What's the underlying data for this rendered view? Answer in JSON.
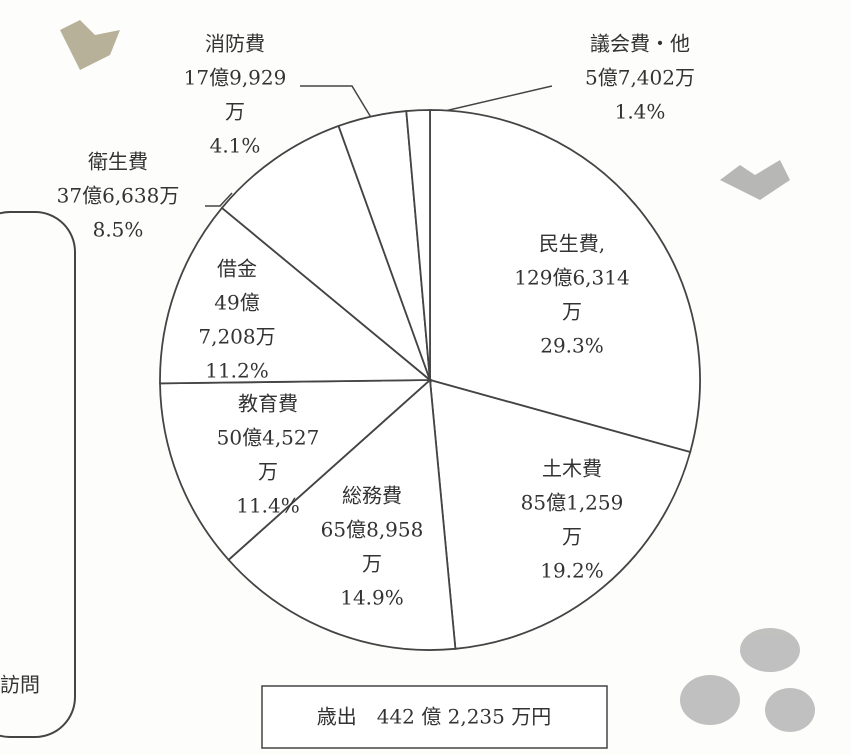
{
  "chart_data": {
    "type": "pie",
    "categories": [
      "民生費,",
      "土木費",
      "総務費",
      "教育費",
      "借金",
      "衛生費",
      "消防費",
      "議会費・他"
    ],
    "amounts": [
      [
        "129億6,314",
        "万"
      ],
      [
        "85億1,259",
        "万"
      ],
      [
        "65億8,958",
        "万"
      ],
      [
        "50億4,527",
        "万"
      ],
      [
        "49億",
        "7,208万"
      ],
      [
        "37億6,638万"
      ],
      [
        "17億9,929",
        "万"
      ],
      [
        "5億7,402万"
      ]
    ],
    "values": [
      29.3,
      19.2,
      14.9,
      11.4,
      11.2,
      8.5,
      4.1,
      1.4
    ],
    "value_labels": [
      "29.3%",
      "19.2%",
      "14.9%",
      "11.4%",
      "11.2%",
      "8.5%",
      "4.1%",
      "1.4%"
    ],
    "color": "#ffffff",
    "total_label": "歳出　442 億 2,235 万円",
    "side_text": "訪問"
  }
}
